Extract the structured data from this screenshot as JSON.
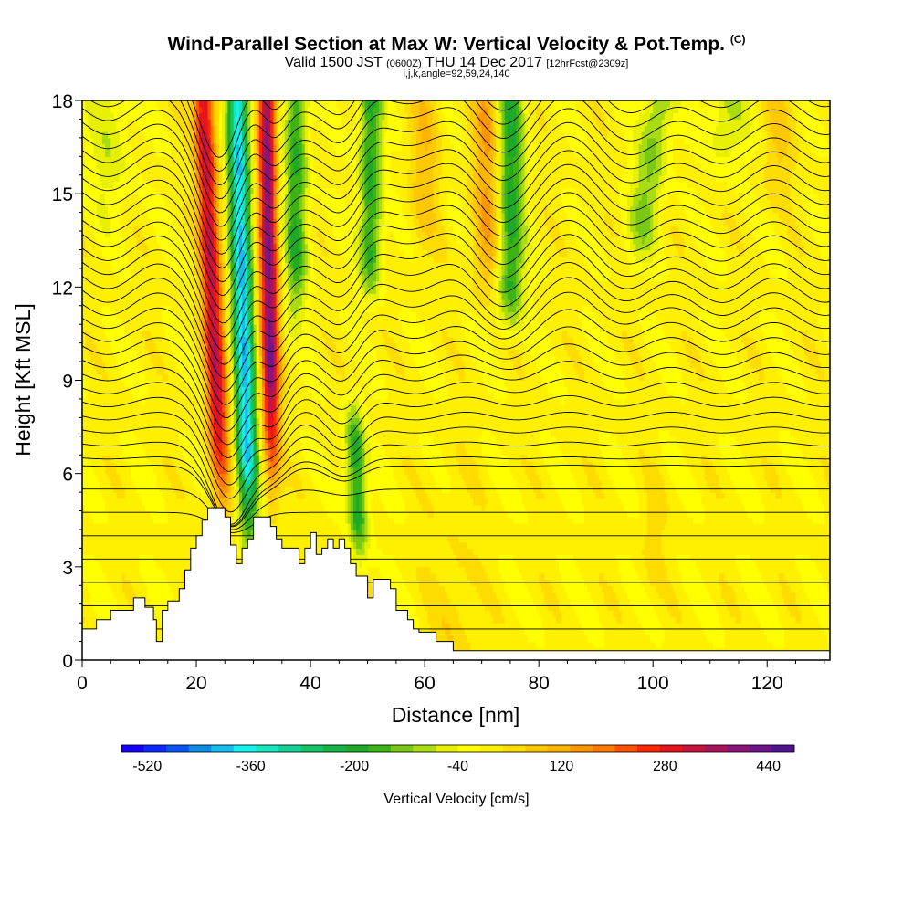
{
  "title": {
    "main": "Wind-Parallel Section at Max W: Vertical Velocity & Pot.Temp.",
    "copyright": "(C)",
    "valid_prefix": "Valid 1500 JST",
    "valid_utc": "(0600Z)",
    "valid_date": "THU 14 Dec 2017",
    "forecast": "[12hrFcst@2309z]",
    "params": "i,j,k,angle=92,59,24,140"
  },
  "chart_data": {
    "type": "heatmap",
    "xlabel": "Distance [nm]",
    "ylabel": "Height [Kft MSL]",
    "xlim": [
      0,
      131
    ],
    "ylim": [
      0,
      18
    ],
    "x_ticks": [
      "0",
      "20",
      "40",
      "60",
      "80",
      "100",
      "120"
    ],
    "y_ticks": [
      "0",
      "3",
      "6",
      "9",
      "12",
      "15",
      "18"
    ],
    "x_tick_values": [
      0,
      20,
      40,
      60,
      80,
      100,
      120
    ],
    "y_tick_values": [
      0,
      3,
      6,
      9,
      12,
      15,
      18
    ],
    "colorbar": {
      "title": "Vertical Velocity [cm/s]",
      "labels": [
        "-520",
        "-360",
        "-200",
        "-40",
        "120",
        "280",
        "440"
      ],
      "label_values": [
        -520,
        -360,
        -200,
        -40,
        120,
        280,
        440
      ],
      "range": [
        -560,
        480
      ],
      "colors": [
        "#1400ff",
        "#0a28ff",
        "#0a55f5",
        "#0a8ce6",
        "#14bef0",
        "#14f0f0",
        "#14e6be",
        "#14d296",
        "#14c364",
        "#14b446",
        "#1eaa28",
        "#3cb414",
        "#78c814",
        "#aadc14",
        "#e6f000",
        "#ffff00",
        "#fff000",
        "#ffdc00",
        "#ffc800",
        "#ffb400",
        "#ff9600",
        "#ff7800",
        "#ff5000",
        "#ff2800",
        "#e6141e",
        "#c8143c",
        "#aa145a",
        "#8c1478",
        "#6e148c",
        "#50148c"
      ]
    },
    "updrafts_cm_s": [
      {
        "x_nm": 24,
        "peak": 300
      },
      {
        "x_nm": 33,
        "peak": 380
      },
      {
        "x_nm": 46,
        "peak": 120
      },
      {
        "x_nm": 70,
        "peak": 120
      }
    ],
    "downdrafts_cm_s": [
      {
        "x_nm": 28.5,
        "peak": -370
      },
      {
        "x_nm": 38,
        "peak": -180
      },
      {
        "x_nm": 47,
        "peak": -200
      },
      {
        "x_nm": 51,
        "peak": -180
      },
      {
        "x_nm": 75,
        "peak": -180
      },
      {
        "x_nm": 100,
        "peak": -120
      },
      {
        "x_nm": 113,
        "peak": -90
      }
    ],
    "terrain_kft": [
      [
        0,
        1.0
      ],
      [
        2.5,
        1.0
      ],
      [
        2.5,
        1.3
      ],
      [
        5,
        1.3
      ],
      [
        5,
        1.6
      ],
      [
        9,
        1.6
      ],
      [
        9,
        2.0
      ],
      [
        11,
        2.0
      ],
      [
        11,
        1.7
      ],
      [
        12.5,
        1.7
      ],
      [
        12.5,
        1.3
      ],
      [
        13,
        1.3
      ],
      [
        13,
        0.6
      ],
      [
        14,
        0.6
      ],
      [
        14,
        1.6
      ],
      [
        15,
        1.6
      ],
      [
        15,
        1.9
      ],
      [
        17,
        1.9
      ],
      [
        17,
        2.3
      ],
      [
        18,
        2.3
      ],
      [
        18,
        2.9
      ],
      [
        19,
        2.9
      ],
      [
        19,
        3.6
      ],
      [
        20,
        3.6
      ],
      [
        20,
        4.0
      ],
      [
        21,
        4.0
      ],
      [
        21,
        4.5
      ],
      [
        22,
        4.5
      ],
      [
        22,
        4.9
      ],
      [
        25,
        4.9
      ],
      [
        25,
        4.6
      ],
      [
        26,
        4.6
      ],
      [
        26,
        3.7
      ],
      [
        27,
        3.7
      ],
      [
        27,
        3.1
      ],
      [
        28,
        3.1
      ],
      [
        28,
        3.6
      ],
      [
        29,
        3.6
      ],
      [
        29,
        3.9
      ],
      [
        30,
        3.9
      ],
      [
        30,
        4.6
      ],
      [
        33,
        4.6
      ],
      [
        33,
        4.3
      ],
      [
        34,
        4.3
      ],
      [
        34,
        3.9
      ],
      [
        35,
        3.9
      ],
      [
        35,
        3.6
      ],
      [
        38,
        3.6
      ],
      [
        38,
        3.1
      ],
      [
        39,
        3.1
      ],
      [
        39,
        3.6
      ],
      [
        40,
        3.6
      ],
      [
        40,
        4.1
      ],
      [
        41,
        4.1
      ],
      [
        41,
        3.4
      ],
      [
        42,
        3.4
      ],
      [
        42,
        3.6
      ],
      [
        43,
        3.6
      ],
      [
        43,
        3.9
      ],
      [
        44,
        3.9
      ],
      [
        44,
        3.6
      ],
      [
        45,
        3.6
      ],
      [
        45,
        3.9
      ],
      [
        46,
        3.9
      ],
      [
        46,
        3.6
      ],
      [
        47,
        3.6
      ],
      [
        47,
        3.1
      ],
      [
        48,
        3.1
      ],
      [
        48,
        2.7
      ],
      [
        50,
        2.7
      ],
      [
        50,
        2.0
      ],
      [
        51,
        2.0
      ],
      [
        51,
        2.6
      ],
      [
        54,
        2.6
      ],
      [
        54,
        2.3
      ],
      [
        55,
        2.3
      ],
      [
        55,
        1.6
      ],
      [
        57,
        1.6
      ],
      [
        57,
        1.3
      ],
      [
        58,
        1.3
      ],
      [
        58,
        1.0
      ],
      [
        59,
        1.0
      ],
      [
        59,
        0.9
      ],
      [
        62,
        0.9
      ],
      [
        62,
        0.6
      ],
      [
        65,
        0.6
      ],
      [
        65,
        0.3
      ],
      [
        131,
        0.3
      ]
    ]
  }
}
